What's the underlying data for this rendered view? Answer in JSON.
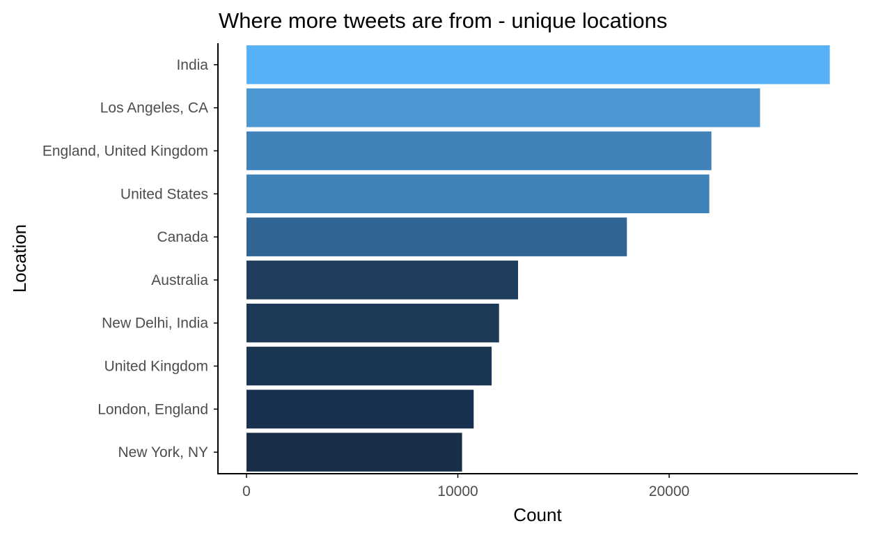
{
  "chart_data": {
    "type": "bar",
    "orientation": "horizontal",
    "title": "Where more tweets are from - unique locations",
    "xlabel": "Count",
    "ylabel": "Location",
    "categories": [
      "India",
      "Los Angeles, CA",
      "England, United Kingdom",
      "United States",
      "Canada",
      "Australia",
      "New Delhi, India",
      "United Kingdom",
      "London, England",
      "New York, NY"
    ],
    "values": [
      27600,
      24300,
      22000,
      21900,
      18000,
      12850,
      11950,
      11600,
      10750,
      10200
    ],
    "colors": [
      "#56b1f7",
      "#4a97d2",
      "#4082ba",
      "#3f82b8",
      "#306493",
      "#1f3e5e",
      "#1d3958",
      "#1b3654",
      "#193150",
      "#172d48"
    ],
    "xlim": [
      0,
      28000
    ],
    "xticks": [
      0,
      10000,
      20000
    ],
    "grid": false,
    "legend": "none"
  }
}
